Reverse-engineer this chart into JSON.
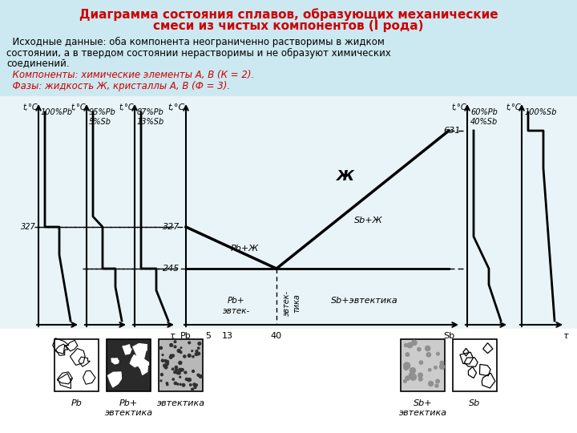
{
  "title_line1": "Диаграмма состояния сплавов, образующих механические",
  "title_line2": "смеси из чистых компонентов (I рода)",
  "text_body": [
    "  Исходные данные: оба компонента неограниченно растворимы в жидком",
    "состоянии, а в твердом состоянии нерастворимы и не образуют химических",
    "соединений.",
    "  Компоненты: химические элементы А, В (К = 2).",
    "  Фазы: жидкость Ж, кристаллы А, В (Ф = 3)."
  ],
  "title_color": "#cc0000",
  "red_italic_color": "#cc0000",
  "bg_color": "#cce8f0",
  "diagram_bg": "#ddeef5"
}
